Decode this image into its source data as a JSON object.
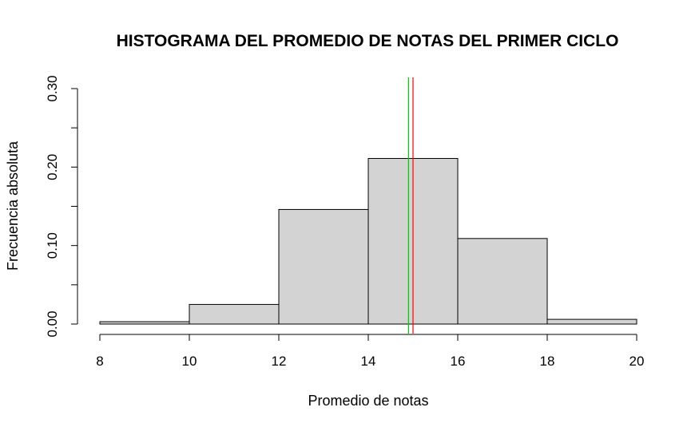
{
  "chart_data": {
    "type": "bar",
    "title": "HISTOGRAMA DEL PROMEDIO DE NOTAS DEL PRIMER CICLO",
    "xlabel": "Promedio de notas",
    "ylabel": "Frecuencia absoluta",
    "bins": [
      {
        "from": 8,
        "to": 10,
        "value": 0.003
      },
      {
        "from": 10,
        "to": 12,
        "value": 0.025
      },
      {
        "from": 12,
        "to": 14,
        "value": 0.146
      },
      {
        "from": 14,
        "to": 16,
        "value": 0.211
      },
      {
        "from": 16,
        "to": 18,
        "value": 0.109
      },
      {
        "from": 18,
        "to": 20,
        "value": 0.006
      }
    ],
    "xlim": [
      8,
      20
    ],
    "ylim": [
      0,
      0.3
    ],
    "xticks": [
      8,
      10,
      12,
      14,
      16,
      18,
      20
    ],
    "xtick_labels": [
      "8",
      "10",
      "12",
      "14",
      "16",
      "18",
      "20"
    ],
    "yticks": [
      0,
      0.05,
      0.1,
      0.15,
      0.2,
      0.25,
      0.3
    ],
    "ytick_labels": [
      "0.00",
      "",
      "0.10",
      "",
      "0.20",
      "",
      "0.30"
    ],
    "reference_lines": [
      {
        "x": 14.9,
        "color": "#00cc00"
      },
      {
        "x": 15.0,
        "color": "#ff0000"
      }
    ],
    "bar_color": "#d3d3d3",
    "grid": false,
    "legend": "none"
  }
}
